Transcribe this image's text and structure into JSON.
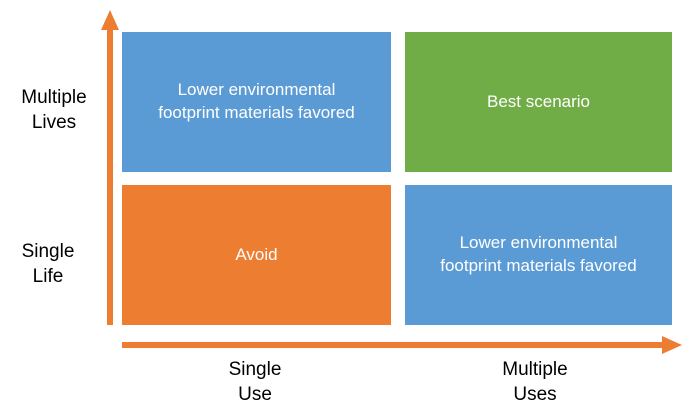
{
  "quadrants": {
    "top_left": "Lower environmental\nfootprint materials favored",
    "top_right": "Best scenario",
    "bottom_left": "Avoid",
    "bottom_right": "Lower environmental\nfootprint materials favored"
  },
  "y_axis": {
    "top": "Multiple\nLives",
    "bottom": "Single\nLife"
  },
  "x_axis": {
    "left": "Single\nUse",
    "right": "Multiple\nUses"
  },
  "colors": {
    "blue": "#5b9bd5",
    "green": "#70ad47",
    "orange": "#ed7d31",
    "arrow": "#ed7d31"
  }
}
